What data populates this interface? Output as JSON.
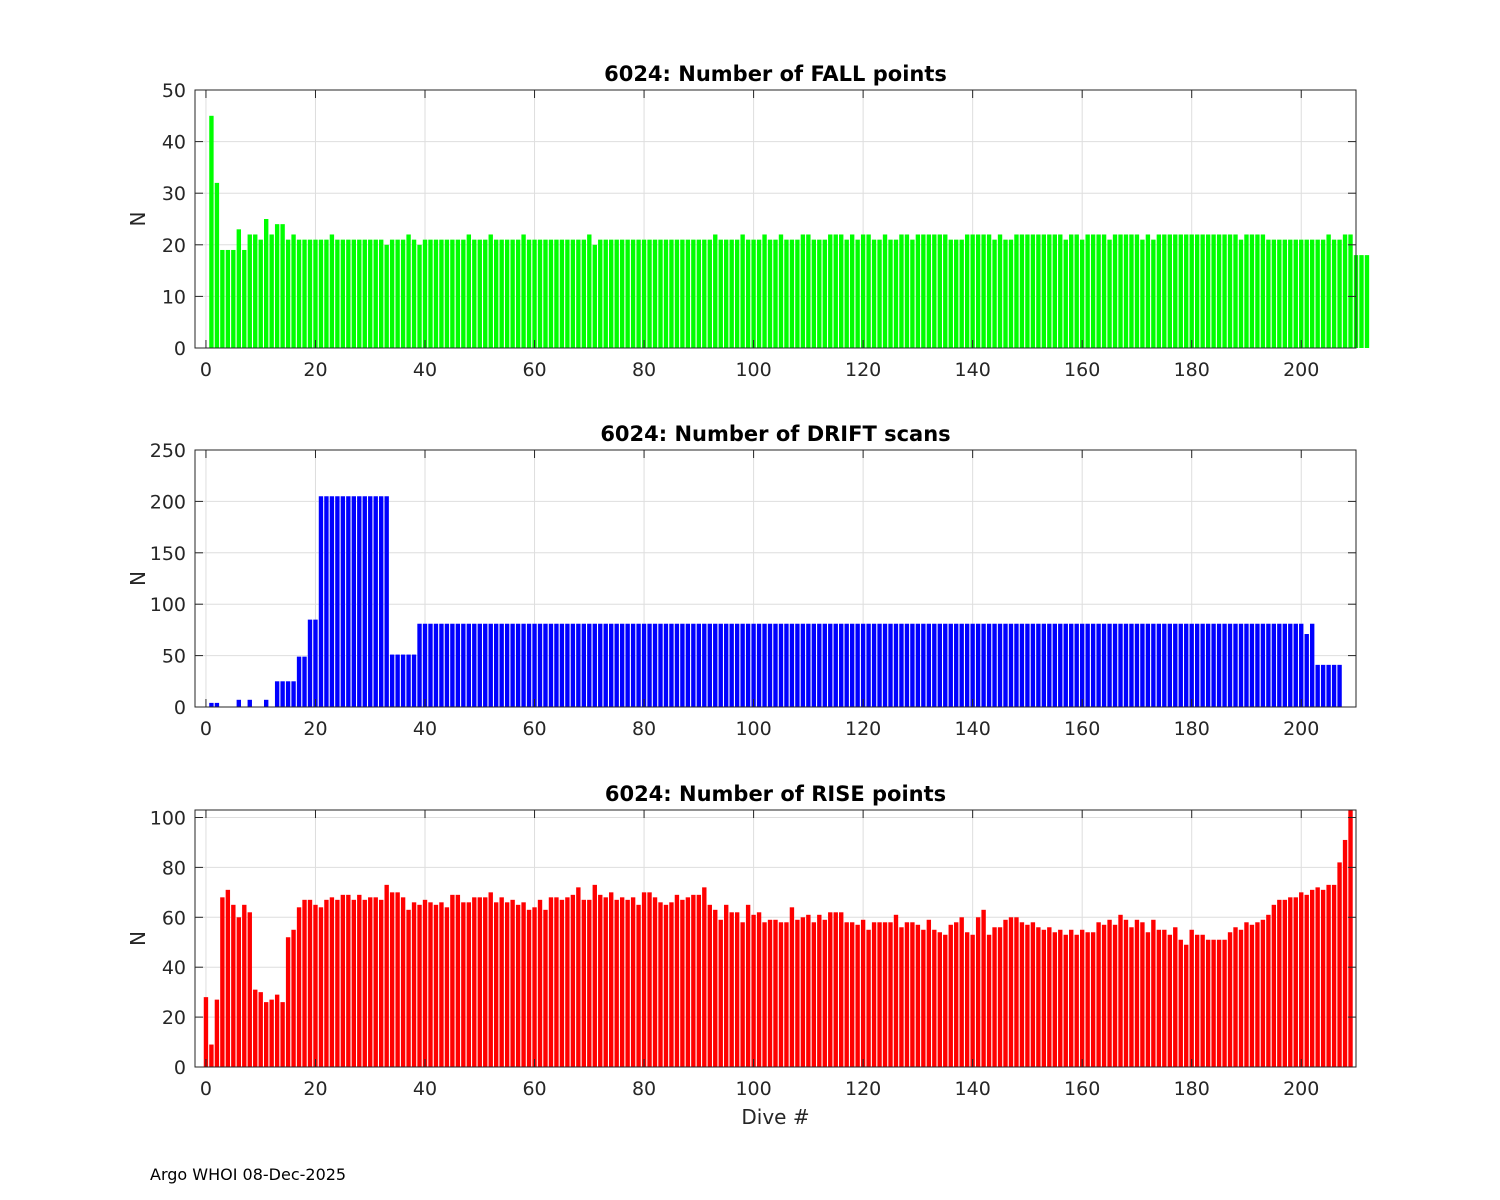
{
  "footer": "Argo WHOI 08-Dec-2025",
  "chart_data": [
    {
      "type": "bar",
      "title": "6024: Number of FALL points",
      "xlabel": "",
      "ylabel": "N",
      "color": "#00ff00",
      "xlim": [
        -2,
        210
      ],
      "ylim": [
        0,
        50
      ],
      "xticks": [
        0,
        20,
        40,
        60,
        80,
        100,
        120,
        140,
        160,
        180,
        200
      ],
      "yticks": [
        0,
        10,
        20,
        30,
        40,
        50
      ],
      "grid": true,
      "x_start": 1,
      "values": [
        45,
        32,
        19,
        19,
        19,
        23,
        19,
        22,
        22,
        21,
        25,
        22,
        24,
        24,
        21,
        22,
        21,
        21,
        21,
        21,
        21,
        21,
        22,
        21,
        21,
        21,
        21,
        21,
        21,
        21,
        21,
        21,
        20,
        21,
        21,
        21,
        22,
        21,
        20,
        21,
        21,
        21,
        21,
        21,
        21,
        21,
        21,
        22,
        21,
        21,
        21,
        22,
        21,
        21,
        21,
        21,
        21,
        22,
        21,
        21,
        21,
        21,
        21,
        21,
        21,
        21,
        21,
        21,
        21,
        22,
        20,
        21,
        21,
        21,
        21,
        21,
        21,
        21,
        21,
        21,
        21,
        21,
        21,
        21,
        21,
        21,
        21,
        21,
        21,
        21,
        21,
        21,
        22,
        21,
        21,
        21,
        21,
        22,
        21,
        21,
        21,
        22,
        21,
        21,
        22,
        21,
        21,
        21,
        22,
        22,
        21,
        21,
        21,
        22,
        22,
        22,
        21,
        22,
        21,
        22,
        22,
        21,
        21,
        22,
        21,
        21,
        22,
        22,
        21,
        22,
        22,
        22,
        22,
        22,
        22,
        21,
        21,
        21,
        22,
        22,
        22,
        22,
        22,
        21,
        22,
        21,
        21,
        22,
        22,
        22,
        22,
        22,
        22,
        22,
        22,
        22,
        21,
        22,
        22,
        21,
        22,
        22,
        22,
        22,
        21,
        22,
        22,
        22,
        22,
        22,
        21,
        22,
        21,
        22,
        22,
        22,
        22,
        22,
        22,
        22,
        22,
        22,
        22,
        22,
        22,
        22,
        22,
        22,
        21,
        22,
        22,
        22,
        22,
        21,
        21,
        21,
        21,
        21,
        21,
        21,
        21,
        21,
        21,
        21,
        22,
        21,
        21,
        22,
        22,
        18,
        18,
        18
      ]
    },
    {
      "type": "bar",
      "title": "6024: Number of DRIFT scans",
      "xlabel": "",
      "ylabel": "N",
      "color": "#0000ff",
      "xlim": [
        -2,
        210
      ],
      "ylim": [
        0,
        250
      ],
      "xticks": [
        0,
        20,
        40,
        60,
        80,
        100,
        120,
        140,
        160,
        180,
        200
      ],
      "yticks": [
        0,
        50,
        100,
        150,
        200,
        250
      ],
      "grid": true,
      "x_start": 1,
      "values": [
        4,
        4,
        0,
        0,
        0,
        7,
        0,
        7,
        0,
        0,
        7,
        0,
        25,
        25,
        25,
        25,
        49,
        49,
        85,
        85,
        205,
        205,
        205,
        205,
        205,
        205,
        205,
        205,
        205,
        205,
        205,
        205,
        205,
        51,
        51,
        51,
        51,
        51,
        81,
        81,
        81,
        81,
        81,
        81,
        81,
        81,
        81,
        81,
        81,
        81,
        81,
        81,
        81,
        81,
        81,
        81,
        81,
        81,
        81,
        81,
        81,
        81,
        81,
        81,
        81,
        81,
        81,
        81,
        81,
        81,
        81,
        81,
        81,
        81,
        81,
        81,
        81,
        81,
        81,
        81,
        81,
        81,
        81,
        81,
        81,
        81,
        81,
        81,
        81,
        81,
        81,
        81,
        81,
        81,
        81,
        81,
        81,
        81,
        81,
        81,
        81,
        81,
        81,
        81,
        81,
        81,
        81,
        81,
        81,
        81,
        81,
        81,
        81,
        81,
        81,
        81,
        81,
        81,
        81,
        81,
        81,
        81,
        81,
        81,
        81,
        81,
        81,
        81,
        81,
        81,
        81,
        81,
        81,
        81,
        81,
        81,
        81,
        81,
        81,
        81,
        81,
        81,
        81,
        81,
        81,
        81,
        81,
        81,
        81,
        81,
        81,
        81,
        81,
        81,
        81,
        81,
        81,
        81,
        81,
        81,
        81,
        81,
        81,
        81,
        81,
        81,
        81,
        81,
        81,
        81,
        81,
        81,
        81,
        81,
        81,
        81,
        81,
        81,
        81,
        81,
        81,
        81,
        81,
        81,
        81,
        81,
        81,
        81,
        81,
        81,
        81,
        81,
        81,
        81,
        81,
        81,
        81,
        81,
        81,
        81,
        71,
        81,
        41,
        41,
        41,
        41,
        41
      ]
    },
    {
      "type": "bar",
      "title": "6024: Number of RISE points",
      "xlabel": "Dive #",
      "ylabel": "N",
      "color": "#ff0000",
      "xlim": [
        -2,
        210
      ],
      "ylim": [
        0,
        103
      ],
      "xticks": [
        0,
        20,
        40,
        60,
        80,
        100,
        120,
        140,
        160,
        180,
        200
      ],
      "yticks": [
        0,
        20,
        40,
        60,
        80,
        100
      ],
      "grid": true,
      "x_start": 0,
      "values": [
        28,
        9,
        27,
        68,
        71,
        65,
        60,
        65,
        62,
        31,
        30,
        26,
        27,
        29,
        26,
        52,
        55,
        64,
        67,
        67,
        65,
        64,
        67,
        68,
        67,
        69,
        69,
        67,
        69,
        67,
        68,
        68,
        67,
        73,
        70,
        70,
        68,
        63,
        66,
        65,
        67,
        66,
        65,
        66,
        64,
        69,
        69,
        66,
        66,
        68,
        68,
        68,
        70,
        66,
        68,
        66,
        67,
        65,
        66,
        63,
        64,
        67,
        63,
        68,
        68,
        67,
        68,
        69,
        72,
        67,
        67,
        73,
        69,
        68,
        70,
        67,
        68,
        67,
        68,
        65,
        70,
        70,
        68,
        66,
        65,
        66,
        69,
        67,
        68,
        69,
        69,
        72,
        65,
        63,
        59,
        65,
        62,
        62,
        58,
        65,
        61,
        62,
        58,
        59,
        59,
        58,
        58,
        64,
        59,
        60,
        61,
        58,
        61,
        59,
        62,
        62,
        62,
        58,
        58,
        57,
        59,
        55,
        58,
        58,
        58,
        58,
        61,
        56,
        58,
        58,
        57,
        55,
        59,
        55,
        54,
        53,
        57,
        58,
        60,
        54,
        53,
        60,
        63,
        53,
        56,
        56,
        59,
        60,
        60,
        58,
        57,
        58,
        56,
        55,
        56,
        54,
        55,
        53,
        55,
        53,
        55,
        54,
        54,
        58,
        57,
        59,
        57,
        61,
        59,
        56,
        59,
        58,
        54,
        59,
        55,
        55,
        53,
        56,
        51,
        49,
        55,
        53,
        53,
        51,
        51,
        51,
        51,
        54,
        56,
        55,
        58,
        57,
        58,
        59,
        61,
        65,
        67,
        67,
        68,
        68,
        70,
        69,
        71,
        72,
        71,
        73,
        73,
        82,
        91,
        103
      ]
    }
  ]
}
